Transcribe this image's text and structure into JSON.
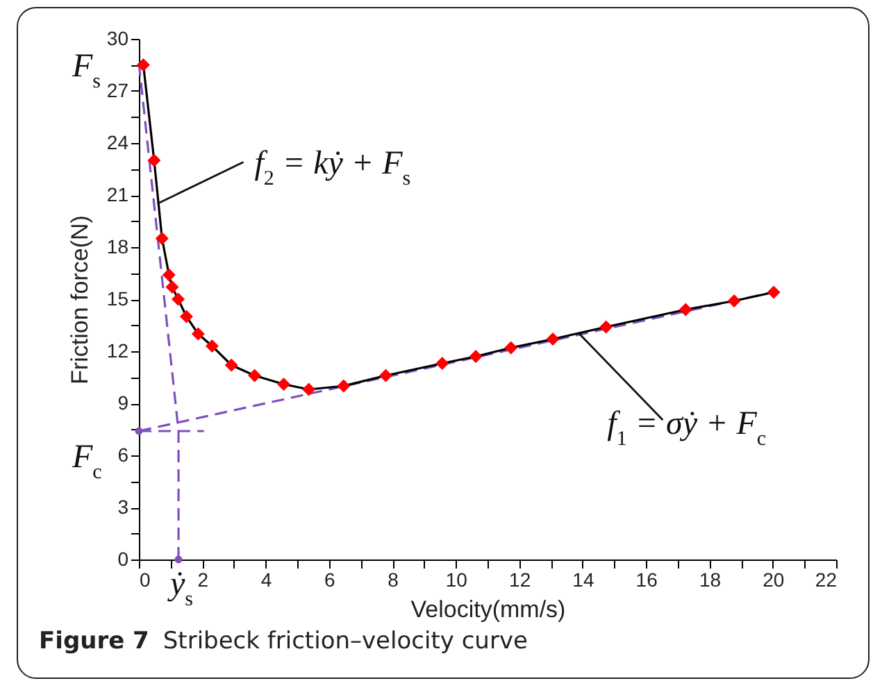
{
  "chart_data": {
    "type": "line",
    "xlabel": "Velocity(mm/s)",
    "ylabel": "Friction force(N)",
    "xlim": [
      0,
      22
    ],
    "xticks": [
      0,
      {
        "value": 1,
        "label": null
      },
      2,
      {
        "value": 3,
        "label": null
      },
      4,
      {
        "value": 5,
        "label": null
      },
      6,
      {
        "value": 7,
        "label": null
      },
      8,
      {
        "value": 9,
        "label": null
      },
      10,
      {
        "value": 11,
        "label": null
      },
      12,
      {
        "value": 13,
        "label": null
      },
      14,
      {
        "value": 15,
        "label": null
      },
      16,
      {
        "value": 17,
        "label": null
      },
      18,
      {
        "value": 19,
        "label": null
      },
      20,
      {
        "value": 21,
        "label": null
      },
      22
    ],
    "ylim": [
      0,
      30
    ],
    "yticks": [
      0,
      {
        "value": 1.5,
        "label": null
      },
      3,
      {
        "value": 4.5,
        "label": null
      },
      6,
      {
        "value": 7.5,
        "label": null
      },
      9,
      {
        "value": 10.5,
        "label": null
      },
      12,
      {
        "value": 13.5,
        "label": null
      },
      15,
      {
        "value": 16.5,
        "label": null
      },
      18,
      {
        "value": 19.5,
        "label": null
      },
      21,
      {
        "value": 22.5,
        "label": null
      },
      24,
      {
        "value": 25.5,
        "label": null
      },
      27,
      {
        "value": 28.5,
        "label": null
      },
      30
    ],
    "grid": false,
    "series": [
      {
        "color": "#7e4fbf",
        "line_style": "dashed",
        "marker": "none",
        "x": [
          0,
          20
        ],
        "values": [
          7.4,
          15.4
        ]
      },
      {
        "color": "#7e4fbf",
        "line_style": "dashed",
        "marker": "none",
        "x": [
          0,
          1.25,
          1.25
        ],
        "values": [
          28.6,
          7.4,
          0
        ]
      },
      {
        "color": "#7e4fbf",
        "line_style": "dashed",
        "marker": "none",
        "x": [
          0,
          2.05
        ],
        "values": [
          7.4,
          7.4
        ]
      },
      {
        "color": "#000000",
        "line_style": "solid",
        "marker": "none",
        "x": [
          0.14,
          0.48,
          0.73,
          0.95,
          1.05,
          1.24,
          1.5,
          1.87,
          2.31,
          2.92,
          3.65,
          4.57,
          5.36,
          6.46,
          7.79,
          9.57,
          10.63,
          11.74,
          13.06,
          14.74,
          17.25,
          18.78,
          20.03
        ],
        "values": [
          28.5,
          23.0,
          18.5,
          16.4,
          15.7,
          15.0,
          14.0,
          13.0,
          12.3,
          11.2,
          10.6,
          10.1,
          9.8,
          10.0,
          10.6,
          11.3,
          11.7,
          12.2,
          12.7,
          13.4,
          14.4,
          14.9,
          15.4
        ]
      },
      {
        "type": "scatter",
        "color": "#ff0000",
        "marker": "diamond",
        "x": [
          0.14,
          0.48,
          0.73,
          0.95,
          1.05,
          1.24,
          1.5,
          1.87,
          2.31,
          2.92,
          3.65,
          4.57,
          5.36,
          6.46,
          7.79,
          9.57,
          10.63,
          11.74,
          13.06,
          14.74,
          17.25,
          18.78,
          20.03
        ],
        "values": [
          28.5,
          23.0,
          18.5,
          16.4,
          15.7,
          15.0,
          14.0,
          13.0,
          12.3,
          11.2,
          10.6,
          10.1,
          9.8,
          10.0,
          10.6,
          11.3,
          11.7,
          12.2,
          12.7,
          13.4,
          14.4,
          14.9,
          15.4
        ]
      },
      {
        "type": "scatter",
        "color": "#7e4fbf",
        "marker": "circle",
        "x": [
          0,
          1.25
        ],
        "values": [
          7.4,
          0
        ]
      }
    ],
    "annotations": [
      {
        "text": "F$_{s}$",
        "x": 0,
        "y": 28.5
      },
      {
        "text": "F$_{c}$",
        "x": 0,
        "y": 7.4
      },
      {
        "text": "ẏ$_{s}$",
        "x": 1.25,
        "y": 0
      },
      {
        "text": "f$_{2}$ = kẏ + F$_{s}$",
        "x": 0.58,
        "y": 20.5
      },
      {
        "text": "f$_{1}$ = σẏ + F$_{c}$",
        "x": 13.9,
        "y": 13.0
      },
      "Figure 7",
      "Stribeck friction–velocity curve"
    ]
  }
}
